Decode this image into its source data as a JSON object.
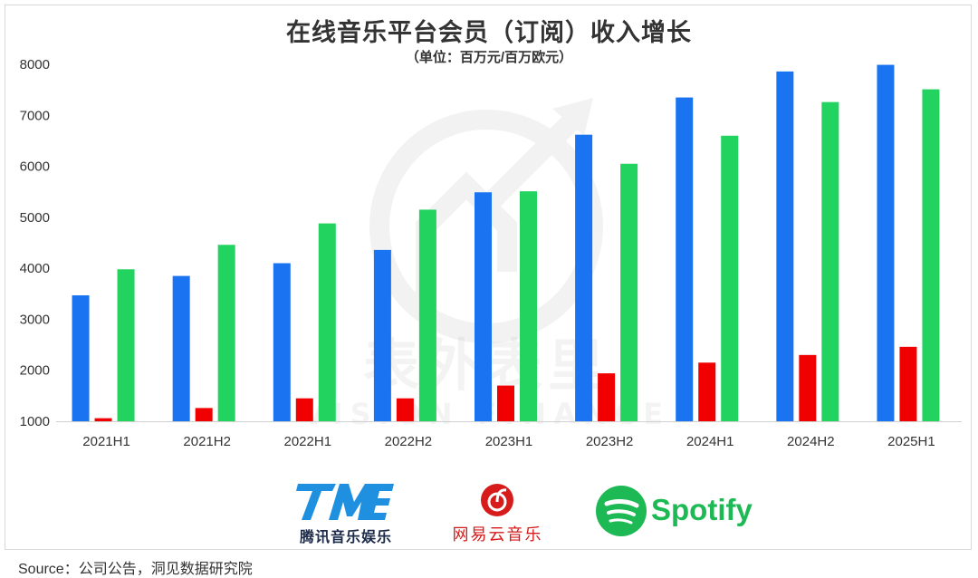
{
  "chart_data": {
    "type": "bar",
    "title": "在线音乐平台会员（订阅）收入增长",
    "subtitle": "（单位：百万元/百万欧元）",
    "categories": [
      "2021H1",
      "2021H2",
      "2022H1",
      "2022H2",
      "2023H1",
      "2023H2",
      "2024H1",
      "2024H2",
      "2025H1"
    ],
    "series": [
      {
        "name": "腾讯音乐娱乐",
        "color": "#1a73f0",
        "values": [
          3470,
          3850,
          4100,
          4360,
          5490,
          6620,
          7350,
          7860,
          7990
        ]
      },
      {
        "name": "网易云音乐",
        "color": "#f00000",
        "values": [
          1060,
          1260,
          1450,
          1450,
          1700,
          1940,
          2150,
          2300,
          2460
        ]
      },
      {
        "name": "Spotify",
        "color": "#22d35f",
        "values": [
          3980,
          4460,
          4880,
          5150,
          5510,
          6050,
          6600,
          7260,
          7510
        ]
      }
    ],
    "ylim": [
      1000,
      8000
    ],
    "yticks": [
      "1000",
      "2000",
      "3000",
      "4000",
      "5000",
      "6000",
      "7000",
      "8000"
    ],
    "xlabel": "",
    "ylabel": "",
    "grid": false,
    "legend": "logos-bottom"
  },
  "watermark": {
    "cn": "表外表里",
    "en": "VISION FINANCE"
  },
  "logos": {
    "tme_mark": "TME",
    "tme_name": "腾讯音乐娱乐",
    "netease_name": "网易云音乐",
    "spotify_name": "Spotify"
  },
  "source": "Source：公司公告，洞见数据研究院"
}
